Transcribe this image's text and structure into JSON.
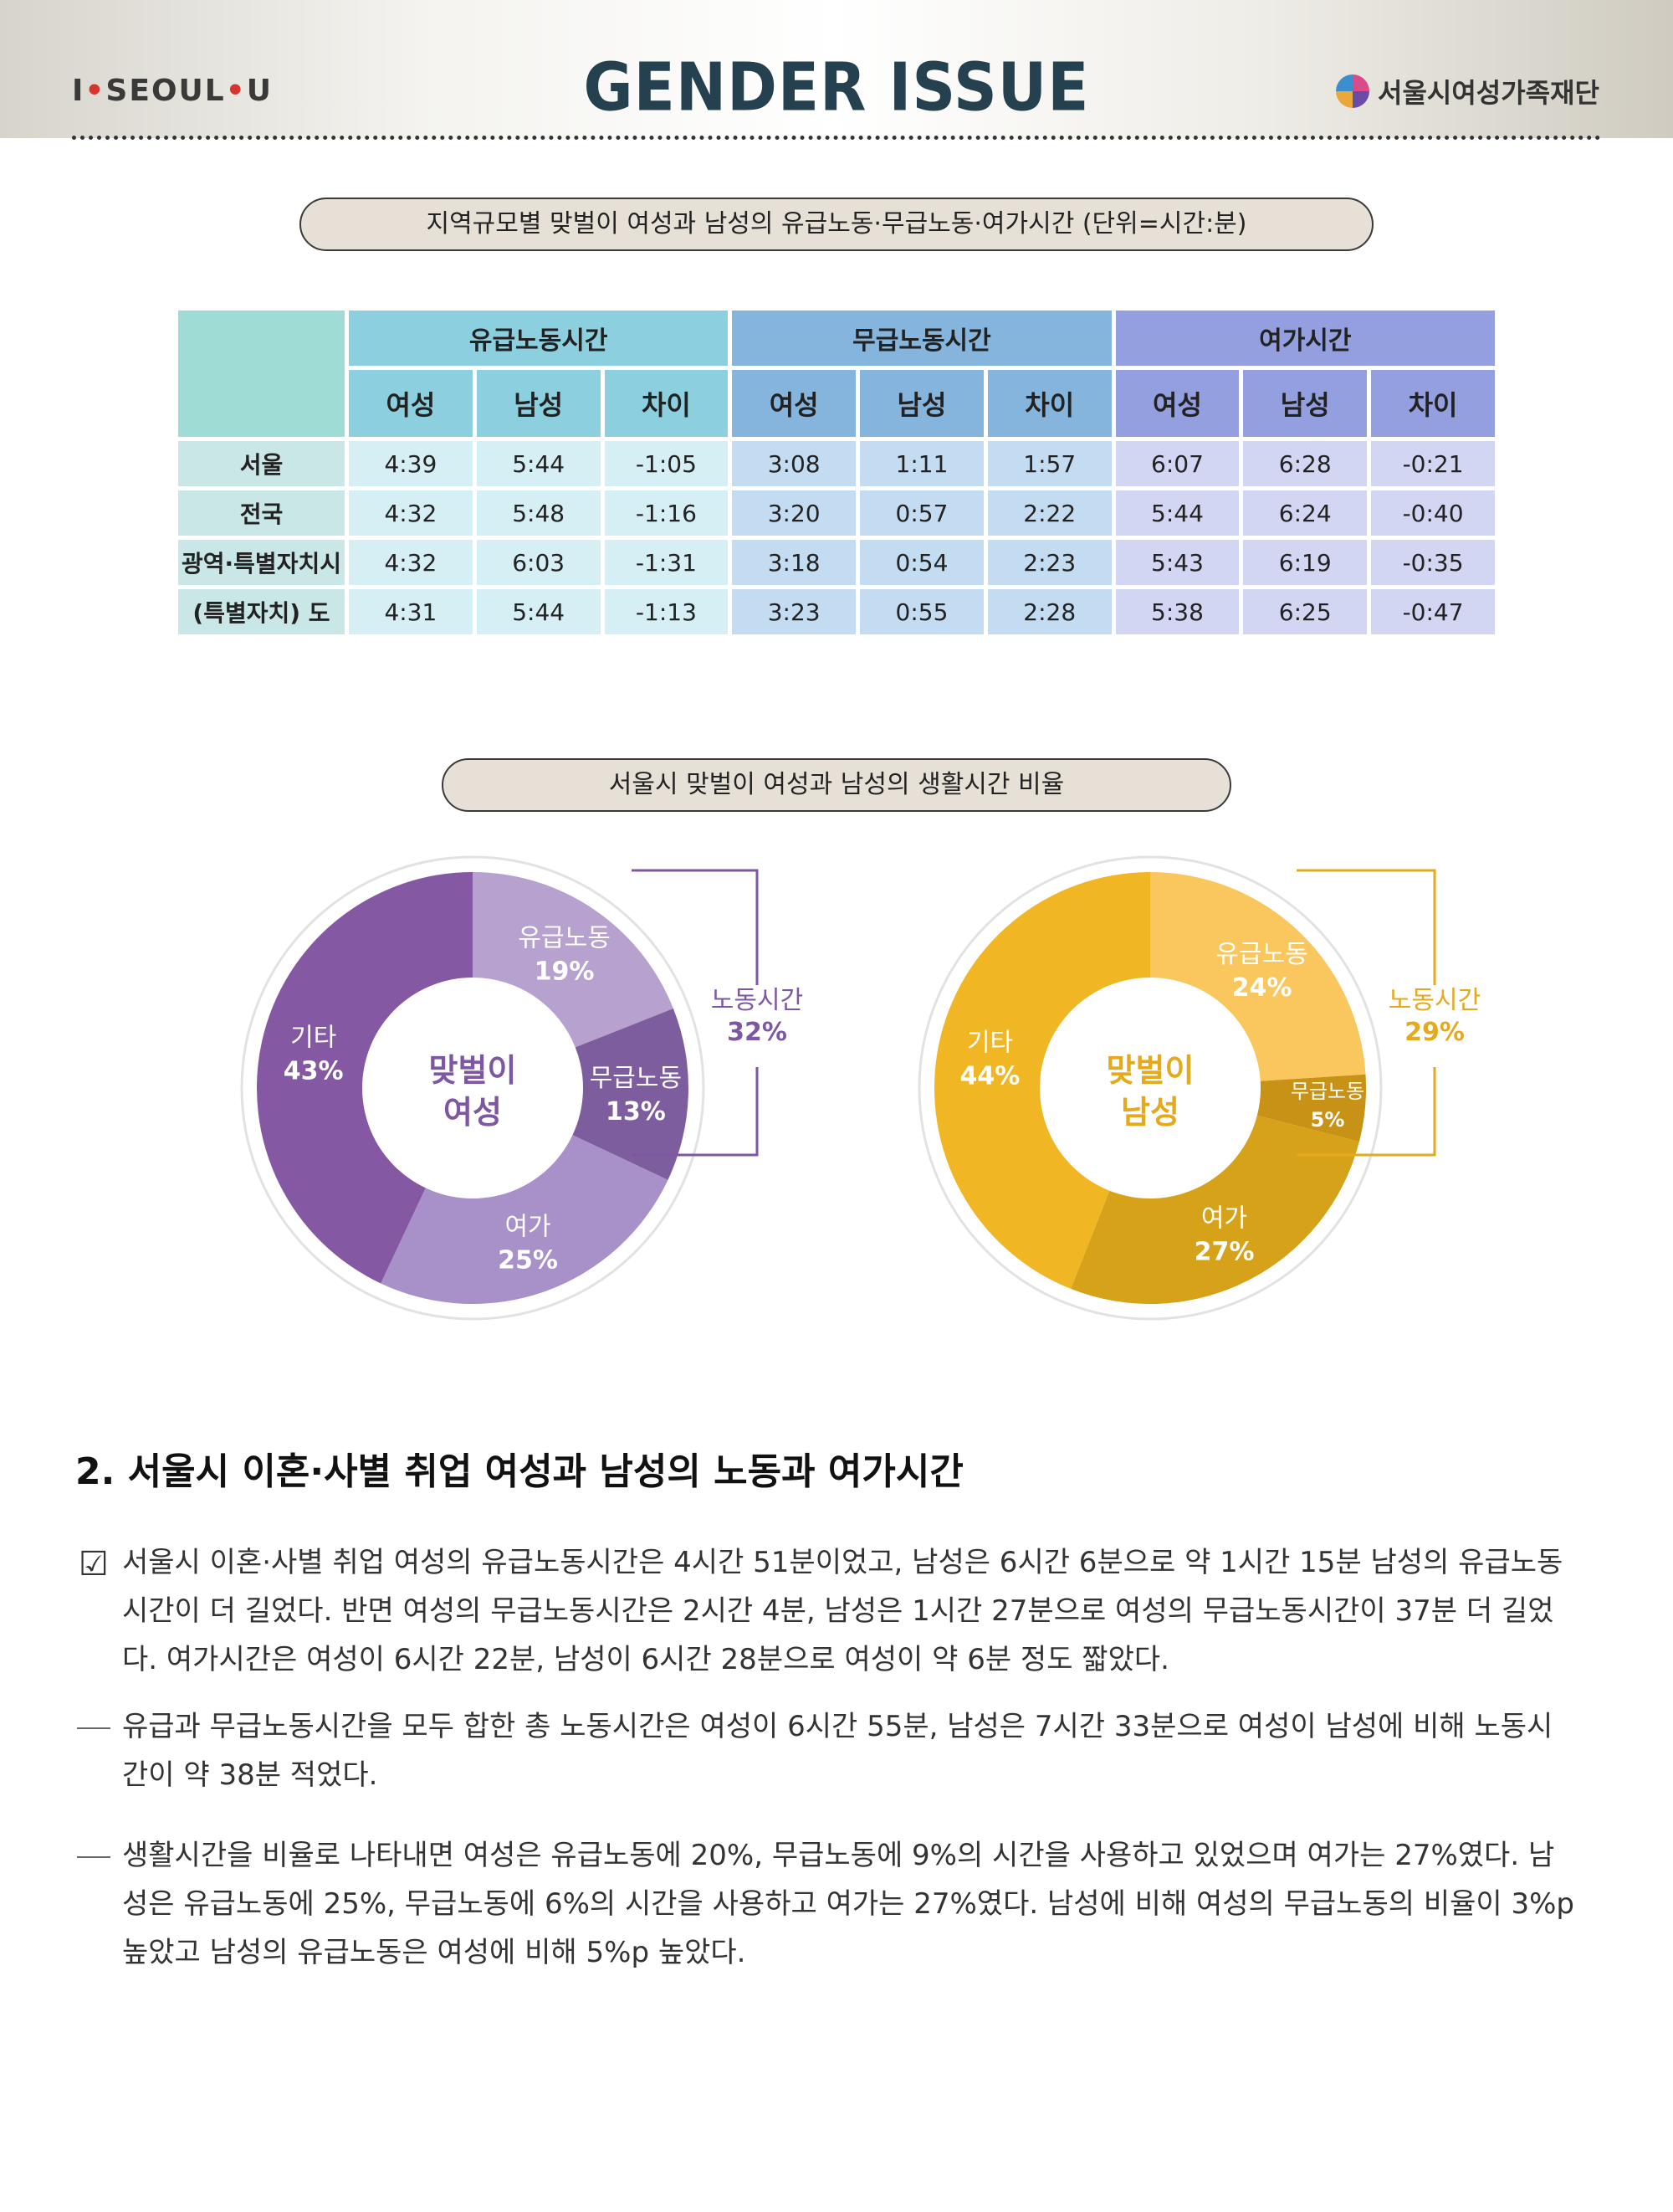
{
  "header": {
    "brand_left_1": "I",
    "brand_left_dot1": "•",
    "brand_left_2": "SEOUL",
    "brand_left_dot2": "•",
    "brand_left_3": "U",
    "title": "GENDER ISSUE",
    "org": "서울시여성가족재단"
  },
  "table": {
    "caption": "지역규모별 맞벌이 여성과 남성의 유급노동·무급노동·여가시간 (단위=시간:분)",
    "groups": [
      "유급노동시간",
      "무급노동시간",
      "여가시간"
    ],
    "subheaders": [
      "여성",
      "남성",
      "차이"
    ],
    "rows": [
      {
        "label": "서울",
        "values": [
          "4:39",
          "5:44",
          "-1:05",
          "3:08",
          "1:11",
          "1:57",
          "6:07",
          "6:28",
          "-0:21"
        ]
      },
      {
        "label": "전국",
        "values": [
          "4:32",
          "5:48",
          "-1:16",
          "3:20",
          "0:57",
          "2:22",
          "5:44",
          "6:24",
          "-0:40"
        ]
      },
      {
        "label": "광역·특별자치시",
        "values": [
          "4:32",
          "6:03",
          "-1:31",
          "3:18",
          "0:54",
          "2:23",
          "5:43",
          "6:19",
          "-0:35"
        ]
      },
      {
        "label": "(특별자치) 도",
        "values": [
          "4:31",
          "5:44",
          "-1:13",
          "3:23",
          "0:55",
          "2:28",
          "5:38",
          "6:25",
          "-0:47"
        ]
      }
    ]
  },
  "chart_data": [
    {
      "type": "pie",
      "title": "서울시 맞벌이 여성과 남성의 생활시간 비율",
      "center_label": [
        "맞벌이",
        "여성"
      ],
      "categories": [
        "유급노동",
        "무급노동",
        "여가",
        "기타"
      ],
      "values": [
        19,
        13,
        25,
        43
      ],
      "value_labels": [
        "19%",
        "13%",
        "25%",
        "43%"
      ],
      "colors": [
        "#b7a2cf",
        "#7e5d9f",
        "#a890c8",
        "#8558a4"
      ],
      "bracket": {
        "label": "노동시간",
        "value": "32%",
        "color": "#7e57a3"
      }
    },
    {
      "type": "pie",
      "center_label": [
        "맞벌이",
        "남성"
      ],
      "categories": [
        "유급노동",
        "무급노동",
        "여가",
        "기타"
      ],
      "values": [
        24,
        5,
        27,
        44
      ],
      "value_labels": [
        "24%",
        "5%",
        "27%",
        "44%"
      ],
      "colors": [
        "#f9c75e",
        "#c89217",
        "#d6a21a",
        "#f0b624"
      ],
      "bracket": {
        "label": "노동시간",
        "value": "29%",
        "color": "#e4a91d"
      }
    }
  ],
  "section": {
    "title": "2. 서울시 이혼·사별 취업 여성과 남성의 노동과 여가시간"
  },
  "paragraphs": [
    "서울시 이혼·사별 취업 여성의 유급노동시간은 4시간 51분이었고, 남성은 6시간 6분으로 약 1시간 15분 남성의 유급노동시간이 더 길었다. 반면 여성의 무급노동시간은 2시간 4분, 남성은 1시간 27분으로 여성의 무급노동시간이 37분 더 길었다. 여가시간은 여성이 6시간 22분, 남성이 6시간 28분으로 여성이 약 6분 정도 짧았다.",
    "유급과 무급노동시간을 모두 합한 총 노동시간은 여성이 6시간 55분, 남성은 7시간 33분으로 여성이 남성에 비해 노동시간이 약 38분 적었다.",
    "생활시간을 비율로 나타내면 여성은 유급노동에 20%, 무급노동에 9%의 시간을 사용하고 있었으며 여가는 27%였다. 남성은 유급노동에 25%, 무급노동에 6%의 시간을 사용하고 여가는 27%였다. 남성에 비해 여성의 무급노동의 비율이 3%p 높았고 남성의 유급노동은 여성에 비해 5%p 높았다."
  ]
}
